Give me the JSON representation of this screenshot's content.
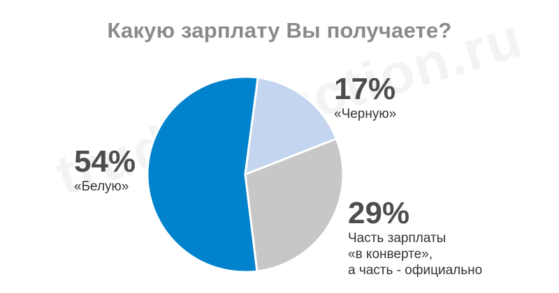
{
  "watermark": "trudinspection.ru",
  "colors": {
    "title": "#8a8a8a",
    "white_salary": "#0083cc",
    "black_salary": "#c3d5ef",
    "grey_salary": "#c7c7c7",
    "slice_border": "#ffffff"
  },
  "chart_data": {
    "type": "pie",
    "title": "Какую зарплату Вы получаете?",
    "slices": [
      {
        "label_lines": [
          "«Белую»"
        ],
        "value": 54,
        "value_label": "54%",
        "color": "#0083cc"
      },
      {
        "label_lines": [
          "«Черную»"
        ],
        "value": 17,
        "value_label": "17%",
        "color": "#c3d5ef"
      },
      {
        "label_lines": [
          "Часть зарплаты",
          "«в конверте»,",
          "а часть - официально"
        ],
        "value": 29,
        "value_label": "29%",
        "color": "#c7c7c7"
      }
    ],
    "legend": "none"
  }
}
